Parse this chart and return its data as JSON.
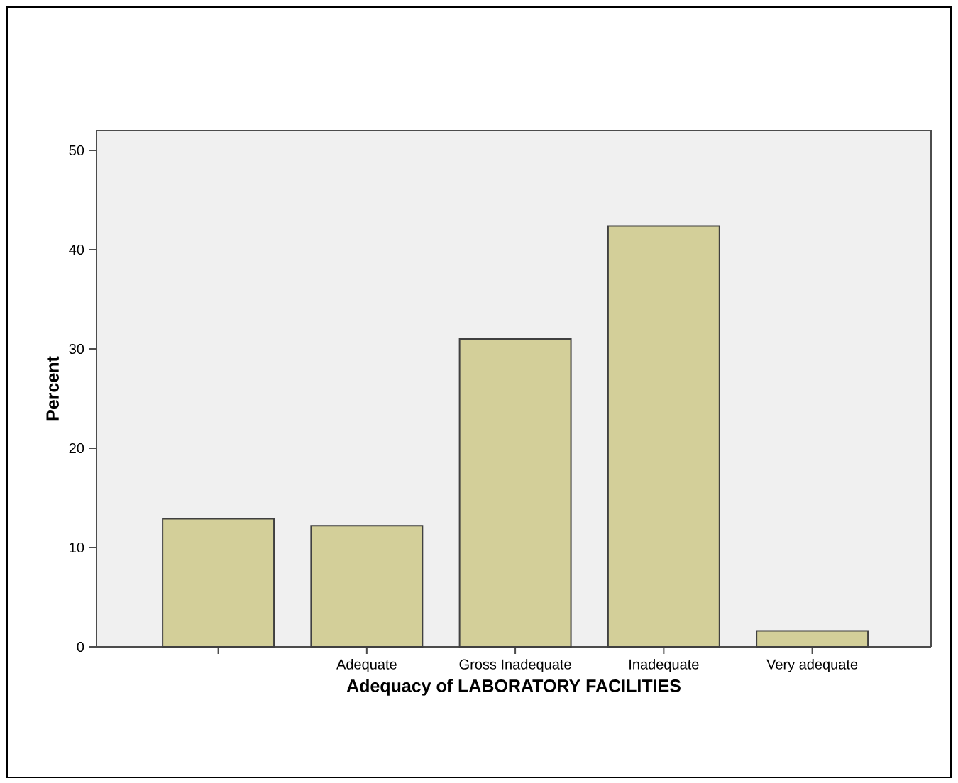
{
  "chart_data": {
    "type": "bar",
    "xlabel": "Adequacy of LABORATORY FACILITIES",
    "ylabel": "Percent",
    "categories": [
      null,
      "Adequate",
      "Gross Inadequate",
      "Inadequate",
      "Very adequate"
    ],
    "values": [
      12.9,
      12.2,
      31.0,
      42.4,
      1.6
    ],
    "color": "#d3cf99",
    "ylim": [
      0,
      52
    ],
    "yticks": [
      0,
      10,
      20,
      30,
      40,
      50
    ],
    "grid": false
  }
}
